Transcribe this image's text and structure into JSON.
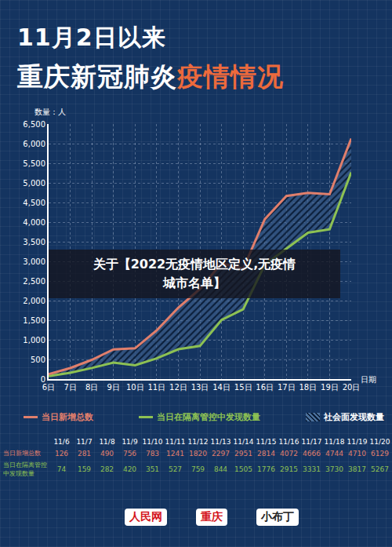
{
  "chart_data": {
    "type": "line",
    "title": "11月2日以来",
    "subtitle": [
      "重庆新冠肺炎",
      "疫情情况"
    ],
    "banner": [
      "关于【2022无疫情地区定义,无疫情",
      "城市名单】"
    ],
    "y_label": "数量：人",
    "x_label": "日期",
    "categories": [
      "6日",
      "7日",
      "8日",
      "9日",
      "10日",
      "11日",
      "12日",
      "13日",
      "14日",
      "15日",
      "16日",
      "17日",
      "18日",
      "19日",
      "20日"
    ],
    "series": [
      {
        "name": "当日新增总数",
        "color": "#e07f6c",
        "values": [
          126,
          281,
          490,
          756,
          783,
          1241,
          1820,
          2297,
          2951,
          2814,
          4072,
          4666,
          4744,
          4710,
          6129
        ]
      },
      {
        "name": "当日在隔离管控中发现数量",
        "color": "#8dc153",
        "values": [
          74,
          159,
          282,
          420,
          351,
          527,
          759,
          844,
          1505,
          1776,
          2915,
          3331,
          3730,
          3817,
          5267
        ]
      }
    ],
    "area_name": "社会面发现数量",
    "table_dates": [
      "11/6",
      "11/7",
      "11/8",
      "11/9",
      "11/10",
      "11/11",
      "11/12",
      "11/13",
      "11/14",
      "11/15",
      "11/16",
      "11/17",
      "11/18",
      "11/19",
      "11/20"
    ],
    "ylim": [
      0,
      6500
    ],
    "yticks": [
      0,
      500,
      {
        "value": 1000,
        "label": "1,000"
      },
      {
        "value": 1500,
        "label": "1,500"
      },
      {
        "value": 2000,
        "label": "2,000"
      },
      {
        "value": 2500,
        "label": "2,500"
      },
      {
        "value": 3000,
        "label": "3,000"
      },
      {
        "value": 3500,
        "label": "3,500"
      },
      {
        "value": 4000,
        "label": "4,000"
      },
      {
        "value": 4500,
        "label": "4,500"
      },
      {
        "value": 5000,
        "label": "5,000"
      },
      {
        "value": 5500,
        "label": "5,500"
      },
      {
        "value": 6000,
        "label": "6,000"
      },
      {
        "value": 6500,
        "label": "6,500"
      }
    ],
    "grid": true,
    "logos": [
      "人民网",
      "重庆",
      "小布丁"
    ]
  }
}
